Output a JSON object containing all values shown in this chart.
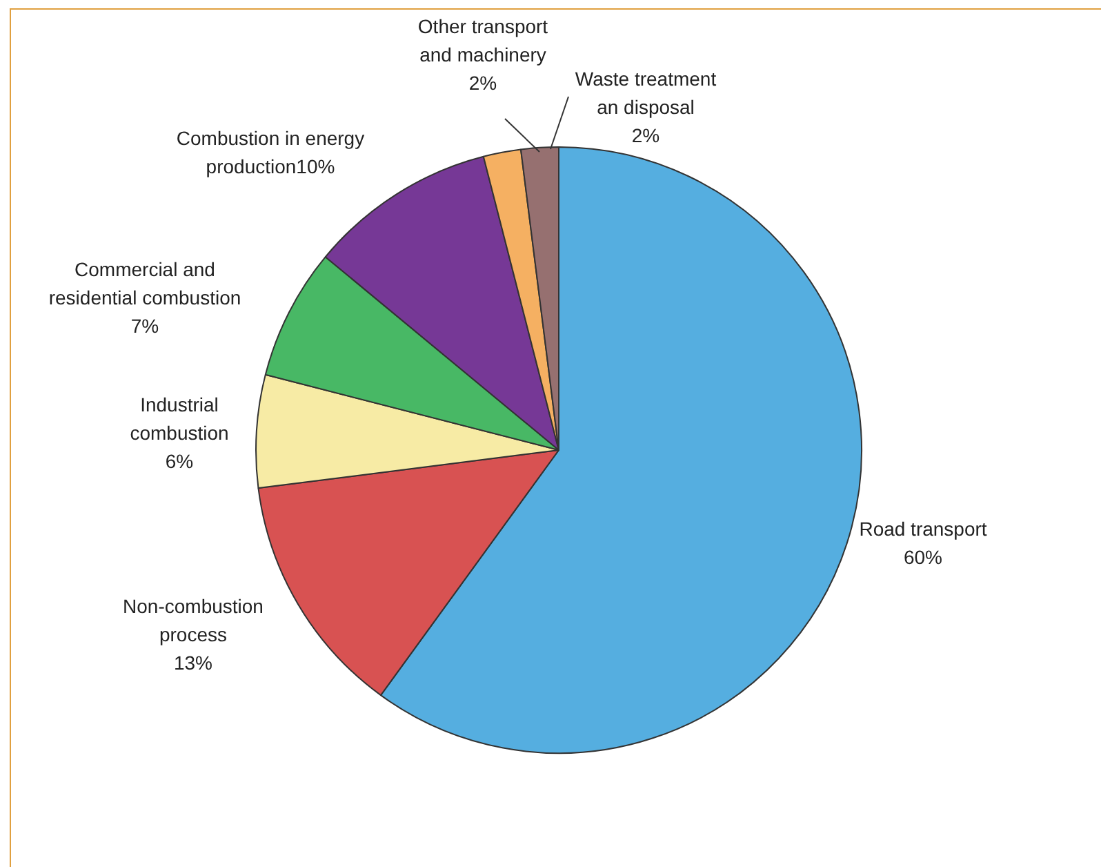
{
  "chart_data": {
    "type": "pie",
    "categories": [
      "Road transport",
      "Non-combustion process",
      "Industrial combustion",
      "Commercial and residential combustion",
      "Combustion in energy production",
      "Other transport and machinery",
      "Waste treatment an disposal"
    ],
    "values": [
      60,
      13,
      6,
      7,
      10,
      2,
      2
    ],
    "colors": [
      "#55aee0",
      "#d85252",
      "#f7eba5",
      "#48b865",
      "#763896",
      "#f5b062",
      "#967070"
    ],
    "value_labels": [
      "60%",
      "13%",
      "6%",
      "7%",
      "10%",
      "2%",
      "2%"
    ],
    "legend": false
  }
}
